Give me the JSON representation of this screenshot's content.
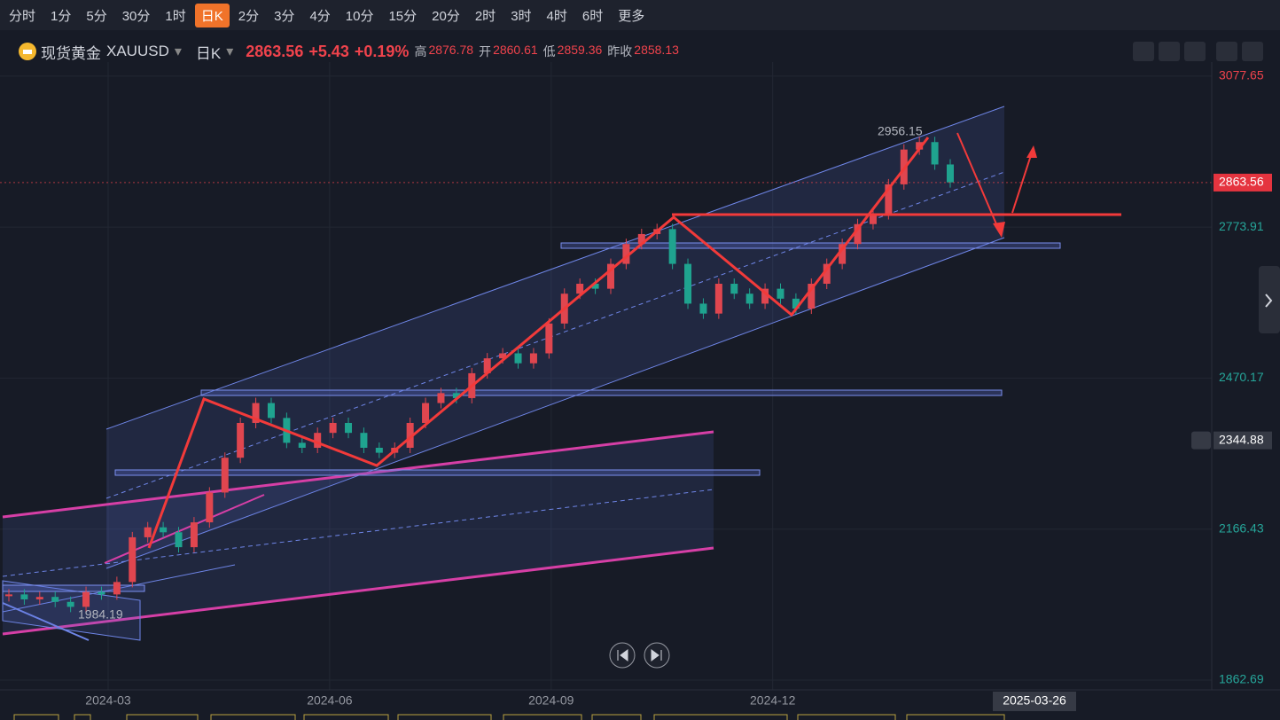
{
  "toolbar": {
    "intervals": [
      "分时",
      "1分",
      "5分",
      "30分",
      "1时",
      "日K",
      "2分",
      "3分",
      "4分",
      "10分",
      "15分",
      "20分",
      "2时",
      "3时",
      "4时",
      "6时",
      "更多"
    ],
    "active": 5
  },
  "header": {
    "name": "现货黄金",
    "symbol": "XAUUSD",
    "period": "日K",
    "price": 2863.56,
    "change": "+5.43",
    "change_pct": "+0.19%",
    "fields": [
      {
        "label": "高",
        "value": 2876.78
      },
      {
        "label": "开",
        "value": 2860.61
      },
      {
        "label": "低",
        "value": 2859.36
      },
      {
        "label": "昨收",
        "value": 2858.13
      }
    ]
  },
  "chart_data": {
    "type": "candlestick",
    "values": [
      2035,
      2025,
      2030,
      2020,
      2010,
      2040,
      2035,
      2060,
      2150,
      2170,
      2160,
      2130,
      2180,
      2240,
      2310,
      2380,
      2420,
      2390,
      2340,
      2330,
      2360,
      2380,
      2360,
      2330,
      2320,
      2330,
      2380,
      2420,
      2440,
      2430,
      2480,
      2510,
      2520,
      2500,
      2520,
      2580,
      2640,
      2660,
      2650,
      2700,
      2740,
      2760,
      2770,
      2700,
      2620,
      2600,
      2660,
      2640,
      2620,
      2650,
      2630,
      2610,
      2660,
      2700,
      2740,
      2780,
      2800,
      2860,
      2930,
      2945,
      2900,
      2864
    ],
    "up_color": "#e0464f",
    "down_color": "#1fa38f",
    "ylim": [
      1843,
      3106
    ],
    "yticks": [
      3077.65,
      2773.91,
      2470.17,
      2166.43,
      1862.69
    ],
    "xticks": [
      "2024-03",
      "2024-06",
      "2024-09",
      "2024-12"
    ],
    "crosshair": {
      "price": 2344.88,
      "date": "2025-03-26"
    },
    "annotations": [
      {
        "label": "2956.15",
        "value": 2956.15
      },
      {
        "label": "1984.19",
        "value": 1984.19
      }
    ]
  }
}
